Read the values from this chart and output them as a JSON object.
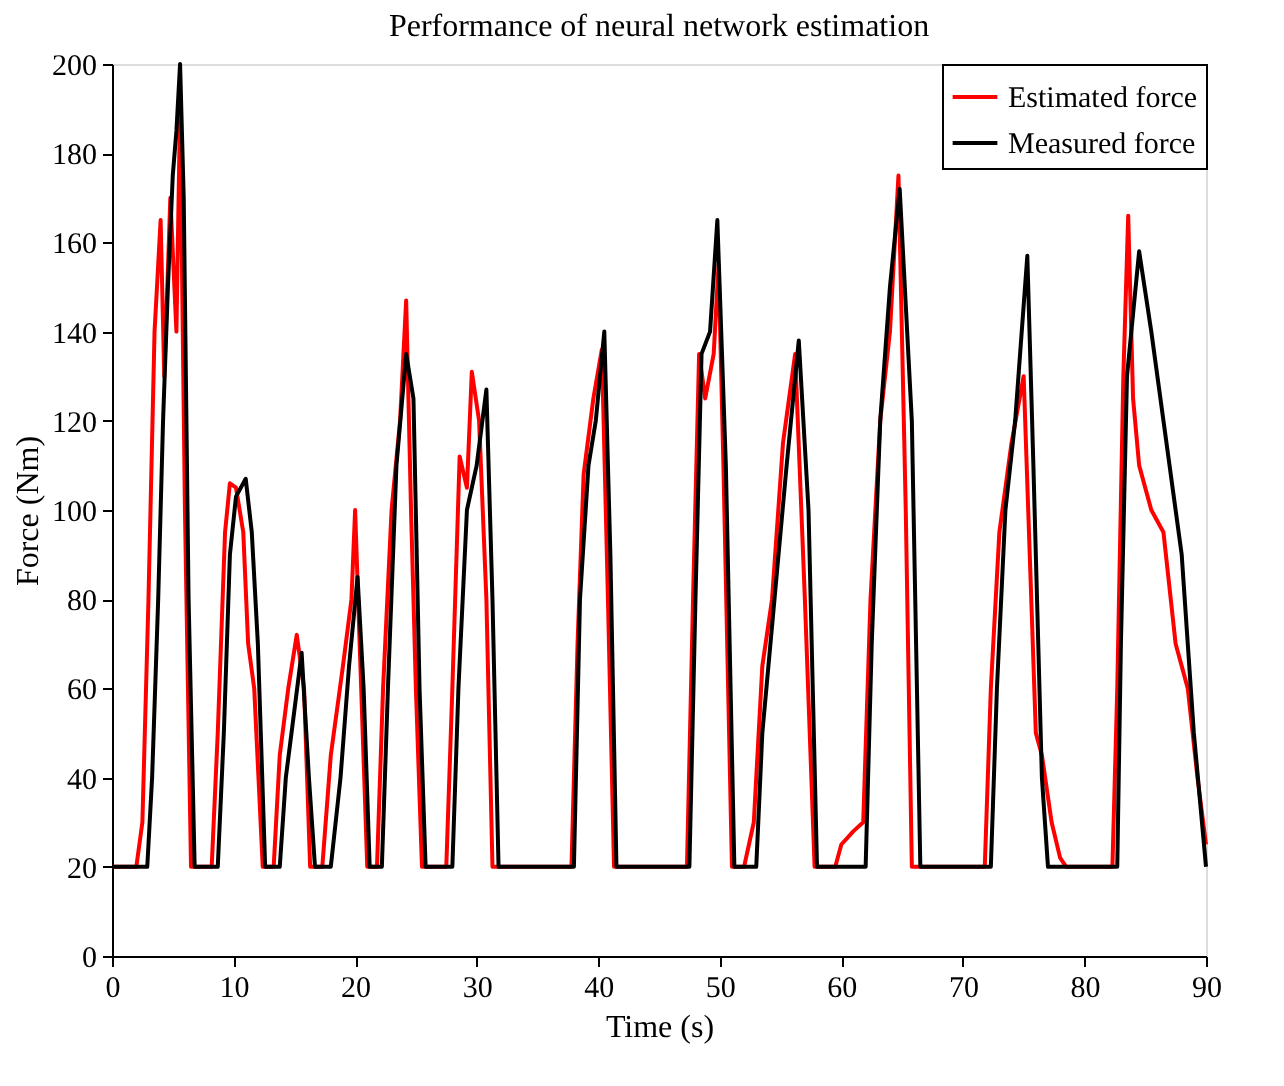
{
  "chart_data": {
    "type": "line",
    "title": "Performance of neural network estimation",
    "xlabel": "Time (s)",
    "ylabel": "Force (Nm)",
    "xlim": [
      0,
      90
    ],
    "xticks": [
      0,
      10,
      20,
      30,
      40,
      50,
      60,
      70,
      80,
      90
    ],
    "ylim": [
      0,
      200
    ],
    "yticks": [
      0,
      20,
      40,
      60,
      80,
      100,
      120,
      140,
      160,
      180,
      200
    ],
    "grid": false,
    "legend": "top right",
    "marker": "none",
    "line_style": "solid",
    "series": [
      {
        "name": "Estimated force",
        "color": "#ff0000",
        "x": [
          0,
          2.0,
          2.5,
          3.0,
          3.5,
          4.0,
          4.3,
          4.8,
          5.3,
          5.6,
          6.0,
          6.5,
          8.2,
          8.7,
          9.3,
          9.7,
          10.2,
          10.8,
          11.2,
          11.7,
          12.4,
          13.3,
          13.8,
          14.5,
          15.2,
          15.8,
          16.3,
          17.3,
          18.0,
          19.0,
          19.7,
          20.0,
          20.5,
          21.0,
          21.8,
          22.3,
          23.0,
          23.7,
          24.2,
          24.6,
          25.0,
          25.5,
          27.5,
          28.0,
          28.6,
          29.2,
          29.6,
          30.2,
          30.8,
          31.3,
          37.8,
          38.3,
          38.8,
          39.6,
          40.3,
          40.8,
          41.3,
          47.3,
          47.8,
          48.3,
          48.8,
          49.5,
          49.9,
          50.3,
          51.0,
          52.0,
          52.8,
          53.5,
          54.3,
          55.2,
          56.2,
          57.0,
          57.8,
          59.5,
          60.0,
          61.0,
          61.8,
          62.4,
          63.2,
          64.0,
          64.7,
          65.3,
          65.8,
          71.8,
          72.3,
          73.0,
          74.0,
          75.0,
          75.5,
          76.0,
          76.5,
          77.3,
          78.0,
          78.5,
          82.3,
          82.7,
          83.2,
          83.6,
          84.0,
          84.5,
          85.5,
          86.5,
          87.5,
          88.5,
          89.3,
          90
        ],
        "values": [
          20,
          20,
          30,
          80,
          140,
          165,
          130,
          170,
          140,
          190,
          100,
          20,
          20,
          50,
          95,
          106,
          105,
          95,
          70,
          60,
          20,
          20,
          45,
          60,
          72,
          60,
          20,
          20,
          45,
          65,
          80,
          100,
          60,
          20,
          20,
          60,
          100,
          120,
          147,
          100,
          60,
          20,
          20,
          60,
          112,
          105,
          131,
          120,
          80,
          20,
          20,
          70,
          108,
          125,
          136,
          80,
          20,
          20,
          80,
          135,
          125,
          135,
          155,
          110,
          20,
          20,
          30,
          65,
          80,
          115,
          135,
          80,
          20,
          20,
          25,
          28,
          30,
          80,
          120,
          140,
          175,
          100,
          20,
          20,
          60,
          95,
          115,
          130,
          90,
          50,
          45,
          30,
          22,
          20,
          20,
          60,
          130,
          166,
          125,
          110,
          100,
          95,
          70,
          60,
          40,
          25
        ]
      },
      {
        "name": "Measured force",
        "color": "#000000",
        "x": [
          0,
          2.9,
          3.3,
          3.8,
          4.2,
          4.6,
          5.0,
          5.3,
          5.6,
          5.9,
          6.3,
          6.8,
          8.7,
          9.2,
          9.7,
          10.2,
          11.0,
          11.5,
          12.0,
          12.6,
          13.8,
          14.3,
          15.0,
          15.6,
          16.2,
          16.7,
          18.0,
          18.8,
          19.5,
          20.2,
          20.7,
          21.2,
          22.2,
          22.7,
          23.4,
          24.2,
          24.8,
          25.3,
          25.8,
          28.0,
          28.5,
          29.2,
          30.0,
          30.8,
          31.3,
          31.8,
          38.0,
          38.5,
          39.2,
          39.8,
          40.5,
          41.0,
          41.5,
          47.5,
          48.0,
          48.5,
          49.2,
          49.8,
          50.5,
          51.2,
          53.0,
          53.5,
          54.5,
          55.5,
          56.5,
          57.3,
          58.0,
          62.0,
          62.5,
          63.2,
          64.0,
          64.8,
          65.8,
          66.5,
          72.3,
          72.8,
          73.5,
          74.3,
          75.3,
          75.8,
          76.5,
          77.0,
          82.7,
          83.0,
          83.5,
          84.5,
          85.5,
          86.5,
          88.0,
          89.0,
          90
        ],
        "values": [
          20,
          20,
          40,
          80,
          120,
          150,
          175,
          185,
          200,
          170,
          80,
          20,
          20,
          50,
          90,
          103,
          107,
          95,
          70,
          20,
          20,
          40,
          55,
          68,
          40,
          20,
          20,
          40,
          65,
          85,
          60,
          20,
          20,
          60,
          110,
          135,
          125,
          60,
          20,
          20,
          60,
          100,
          110,
          127,
          80,
          20,
          20,
          80,
          110,
          120,
          140,
          90,
          20,
          20,
          80,
          135,
          140,
          165,
          110,
          20,
          20,
          50,
          80,
          110,
          138,
          100,
          20,
          20,
          70,
          120,
          150,
          172,
          120,
          20,
          20,
          60,
          100,
          120,
          157,
          110,
          40,
          20,
          20,
          70,
          130,
          158,
          140,
          120,
          90,
          50,
          20
        ]
      }
    ]
  }
}
